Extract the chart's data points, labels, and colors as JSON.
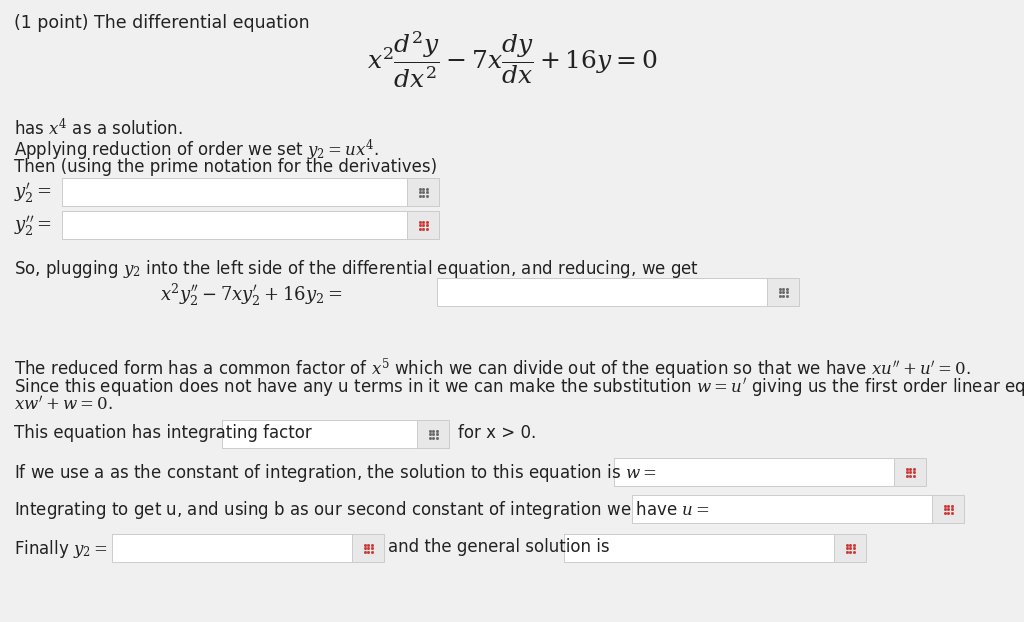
{
  "bg_color": "#f0f0f0",
  "white": "#ffffff",
  "text_color": "#222222",
  "border_color": "#cccccc",
  "grid_color": "#666666",
  "grid_color2": "#cc3333",
  "title": "(1 point) The differential equation",
  "main_eq": "$x^2\\dfrac{d^2y}{dx^2} - 7x\\dfrac{dy}{dx} + 16y = 0$",
  "line1": "has $x^4$ as a solution.",
  "line2": "Applying reduction of order we set $y_2 = ux^4$.",
  "line3": "Then (using the prime notation for the derivatives)",
  "y2p_label": "$y_2' =$",
  "y2pp_label": "$y_2'' =$",
  "plugging_line": "So, plugging $y_2$ into the left side of the differential equation, and reducing, we get",
  "plugging_eq": "$x^2y_2'' - 7xy_2' + 16y_2 =$",
  "reduced_line1": "The reduced form has a common factor of $x^5$ which we can divide out of the equation so that we have $xu'' + u' = 0$.",
  "reduced_line2": "Since this equation does not have any u terms in it we can make the substitution $w = u'$ giving us the first order linear equation",
  "reduced_line3": "$xw' + w = 0$.",
  "integrating_line": "This equation has integrating factor",
  "for_x": "for x > 0.",
  "w_line": "If we use a as the constant of integration, the solution to this equation is $w =$",
  "u_line": "Integrating to get u, and using b as our second constant of integration we have $u =$",
  "finally_line": "Finally $y_2 =$",
  "general_line": "and the general solution is"
}
